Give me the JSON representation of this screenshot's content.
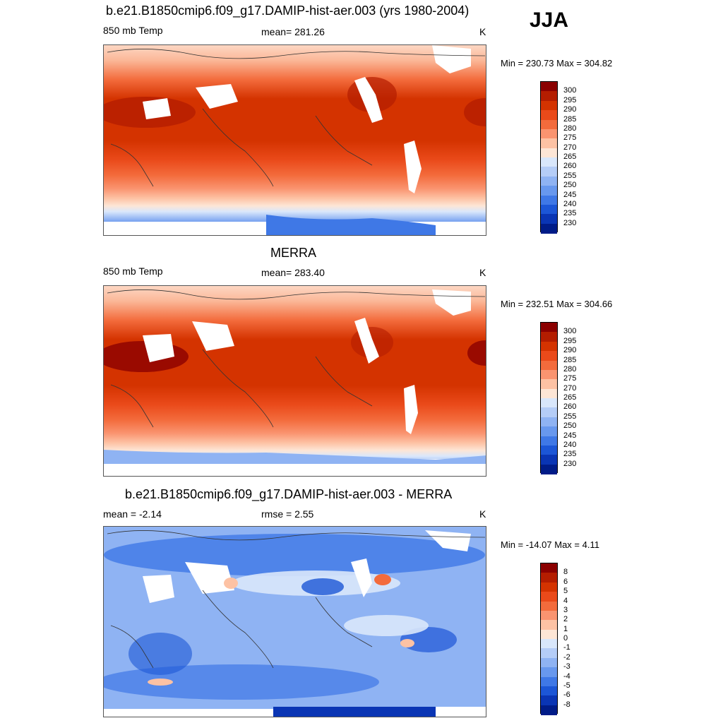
{
  "season": "JJA",
  "panels": [
    {
      "id": "model",
      "title": "b.e21.B1850cmip6.f09_g17.DAMIP-hist-aer.003 (yrs 1980-2004)",
      "left_label": "850 mb Temp",
      "center_label": "mean= 281.26",
      "units": "K",
      "minmax": "Min = 230.73 Max = 304.82",
      "colorbar_ticks": [
        "300",
        "295",
        "290",
        "285",
        "280",
        "275",
        "270",
        "265",
        "260",
        "255",
        "250",
        "245",
        "240",
        "235",
        "230"
      ],
      "colorbar_colors": [
        "#8b0000",
        "#b41d00",
        "#d43300",
        "#ea4a1a",
        "#f36b3c",
        "#fa9470",
        "#fdc2a4",
        "#fde6d6",
        "#d9e7fb",
        "#b5cdf7",
        "#8fb3f3",
        "#6898ee",
        "#3f78e6",
        "#1c56d6",
        "#0a35b4",
        "#001c88"
      ]
    },
    {
      "id": "obs",
      "title": "MERRA",
      "left_label": "850 mb Temp",
      "center_label": "mean= 283.40",
      "units": "K",
      "minmax": "Min = 232.51 Max = 304.66",
      "colorbar_ticks": [
        "300",
        "295",
        "290",
        "285",
        "280",
        "275",
        "270",
        "265",
        "260",
        "255",
        "250",
        "245",
        "240",
        "235",
        "230"
      ],
      "colorbar_colors": [
        "#8b0000",
        "#b41d00",
        "#d43300",
        "#ea4a1a",
        "#f36b3c",
        "#fa9470",
        "#fdc2a4",
        "#fde6d6",
        "#d9e7fb",
        "#b5cdf7",
        "#8fb3f3",
        "#6898ee",
        "#3f78e6",
        "#1c56d6",
        "#0a35b4",
        "#001c88"
      ]
    },
    {
      "id": "diff",
      "title": "b.e21.B1850cmip6.f09_g17.DAMIP-hist-aer.003 - MERRA",
      "left_label": "mean =  -2.14",
      "center_label": "rmse =   2.55",
      "units": "K",
      "minmax": "Min = -14.07 Max =   4.11",
      "colorbar_ticks": [
        "8",
        "6",
        "5",
        "4",
        "3",
        "2",
        "1",
        "0",
        "-1",
        "-2",
        "-3",
        "-4",
        "-5",
        "-6",
        "-8"
      ],
      "colorbar_colors": [
        "#8b0000",
        "#b41d00",
        "#d43300",
        "#ea4a1a",
        "#f36b3c",
        "#fa9470",
        "#fdc2a4",
        "#fde6d6",
        "#d9e7fb",
        "#b5cdf7",
        "#8fb3f3",
        "#6898ee",
        "#3f78e6",
        "#1c56d6",
        "#0a35b4",
        "#001c88"
      ]
    }
  ]
}
